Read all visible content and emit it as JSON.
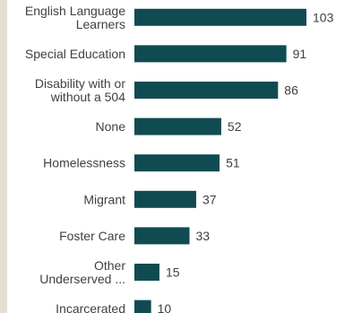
{
  "chart_data": {
    "type": "bar",
    "orientation": "horizontal",
    "categories": [
      [
        "English Language",
        "Learners"
      ],
      [
        "Special Education"
      ],
      [
        "Disability with or",
        "without a 504"
      ],
      [
        "None"
      ],
      [
        "Homelessness"
      ],
      [
        "Migrant"
      ],
      [
        "Foster Care"
      ],
      [
        "Other",
        "Underserved ..."
      ],
      [
        "Incarcerated"
      ]
    ],
    "values": [
      103,
      91,
      86,
      52,
      51,
      37,
      33,
      15,
      10
    ],
    "title": "",
    "xlabel": "",
    "ylabel": "",
    "xlim": [
      0,
      103
    ],
    "grid": false,
    "legend": "none",
    "colors": {
      "bar": "#114b52",
      "text": "#404040",
      "side_strip": "#e4ddd2"
    }
  }
}
